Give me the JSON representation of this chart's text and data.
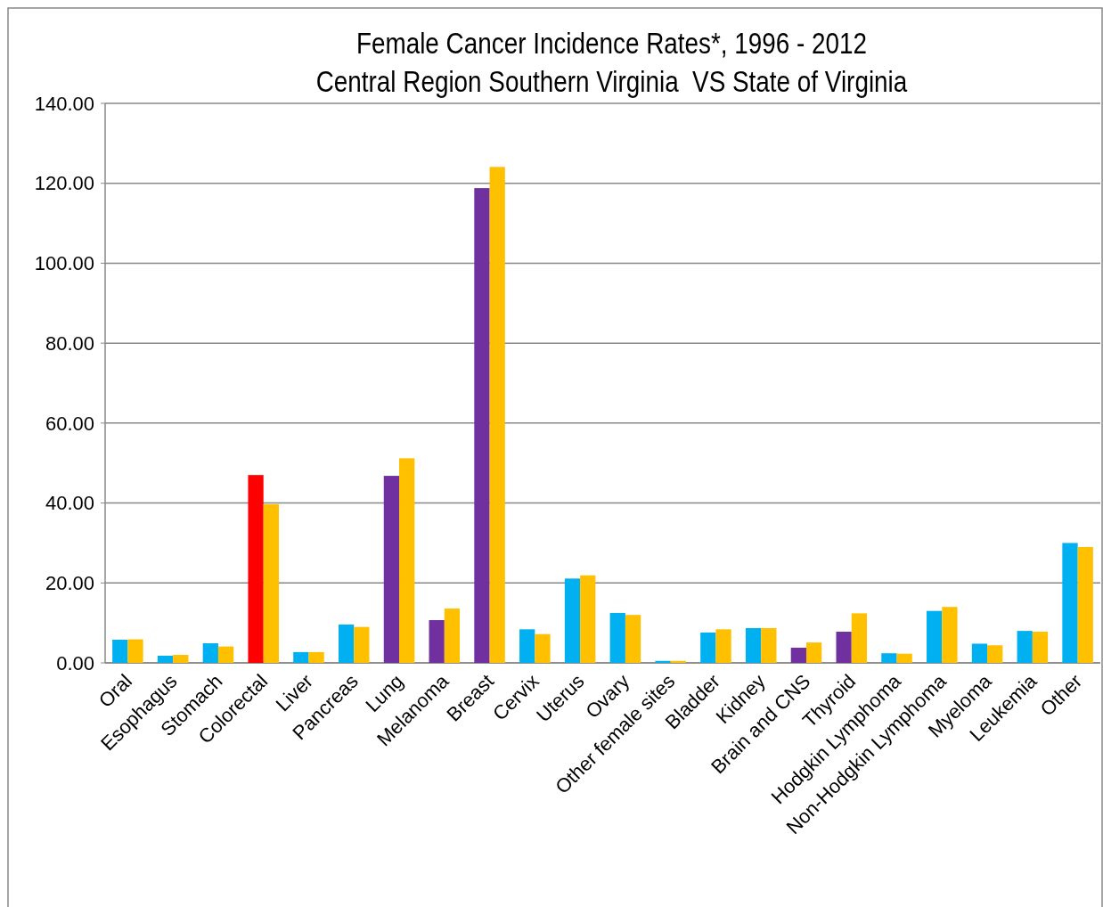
{
  "chart_data": {
    "type": "bar",
    "title": "Female Cancer Incidence Rates*, 1996 - 2012\nCentral Region Southern Virginia  VS State of Virginia",
    "categories": [
      "Oral",
      "Esophagus",
      "Stomach",
      "Colorectal",
      "Liver",
      "Pancreas",
      "Lung",
      "Melanoma",
      "Breast",
      "Cervix",
      "Uterus",
      "Ovary",
      "Other female sites",
      "Bladder",
      "Kidney",
      "Brain and CNS",
      "Thyroid",
      "Hodgkin Lymphoma",
      "Non-Hodgkin Lymphoma",
      "Myeloma",
      "Leukemia",
      "Other"
    ],
    "series": [
      {
        "colors": [
          "#00b0f0",
          "#00b0f0",
          "#00b0f0",
          "#ff0000",
          "#00b0f0",
          "#00b0f0",
          "#7030a0",
          "#7030a0",
          "#7030a0",
          "#00b0f0",
          "#00b0f0",
          "#00b0f0",
          "#00b0f0",
          "#00b0f0",
          "#00b0f0",
          "#7030a0",
          "#7030a0",
          "#00b0f0",
          "#00b0f0",
          "#00b0f0",
          "#00b0f0",
          "#00b0f0"
        ],
        "values": [
          5.8,
          1.8,
          4.9,
          47.0,
          2.7,
          9.6,
          46.8,
          10.7,
          118.8,
          8.4,
          21.1,
          12.5,
          0.5,
          7.6,
          8.7,
          3.8,
          7.8,
          2.4,
          13.0,
          4.8,
          8.0,
          30.0
        ]
      },
      {
        "color": "#ffc000",
        "values": [
          5.9,
          2.0,
          4.1,
          39.7,
          2.7,
          9.0,
          51.2,
          13.6,
          124.1,
          7.2,
          21.9,
          12.0,
          0.5,
          8.4,
          8.7,
          5.1,
          12.4,
          2.3,
          14.0,
          4.4,
          7.8,
          29.0
        ]
      }
    ],
    "ylim": [
      0,
      140
    ],
    "yticks": [
      {
        "value": 0,
        "label": "0.00"
      },
      {
        "value": 20,
        "label": "20.00"
      },
      {
        "value": 40,
        "label": "40.00"
      },
      {
        "value": 60,
        "label": "60.00"
      },
      {
        "value": 80,
        "label": "80.00"
      },
      {
        "value": 100,
        "label": "100.00"
      },
      {
        "value": 120,
        "label": "120.00"
      },
      {
        "value": 140,
        "label": "140.00"
      }
    ],
    "grid": "y"
  }
}
